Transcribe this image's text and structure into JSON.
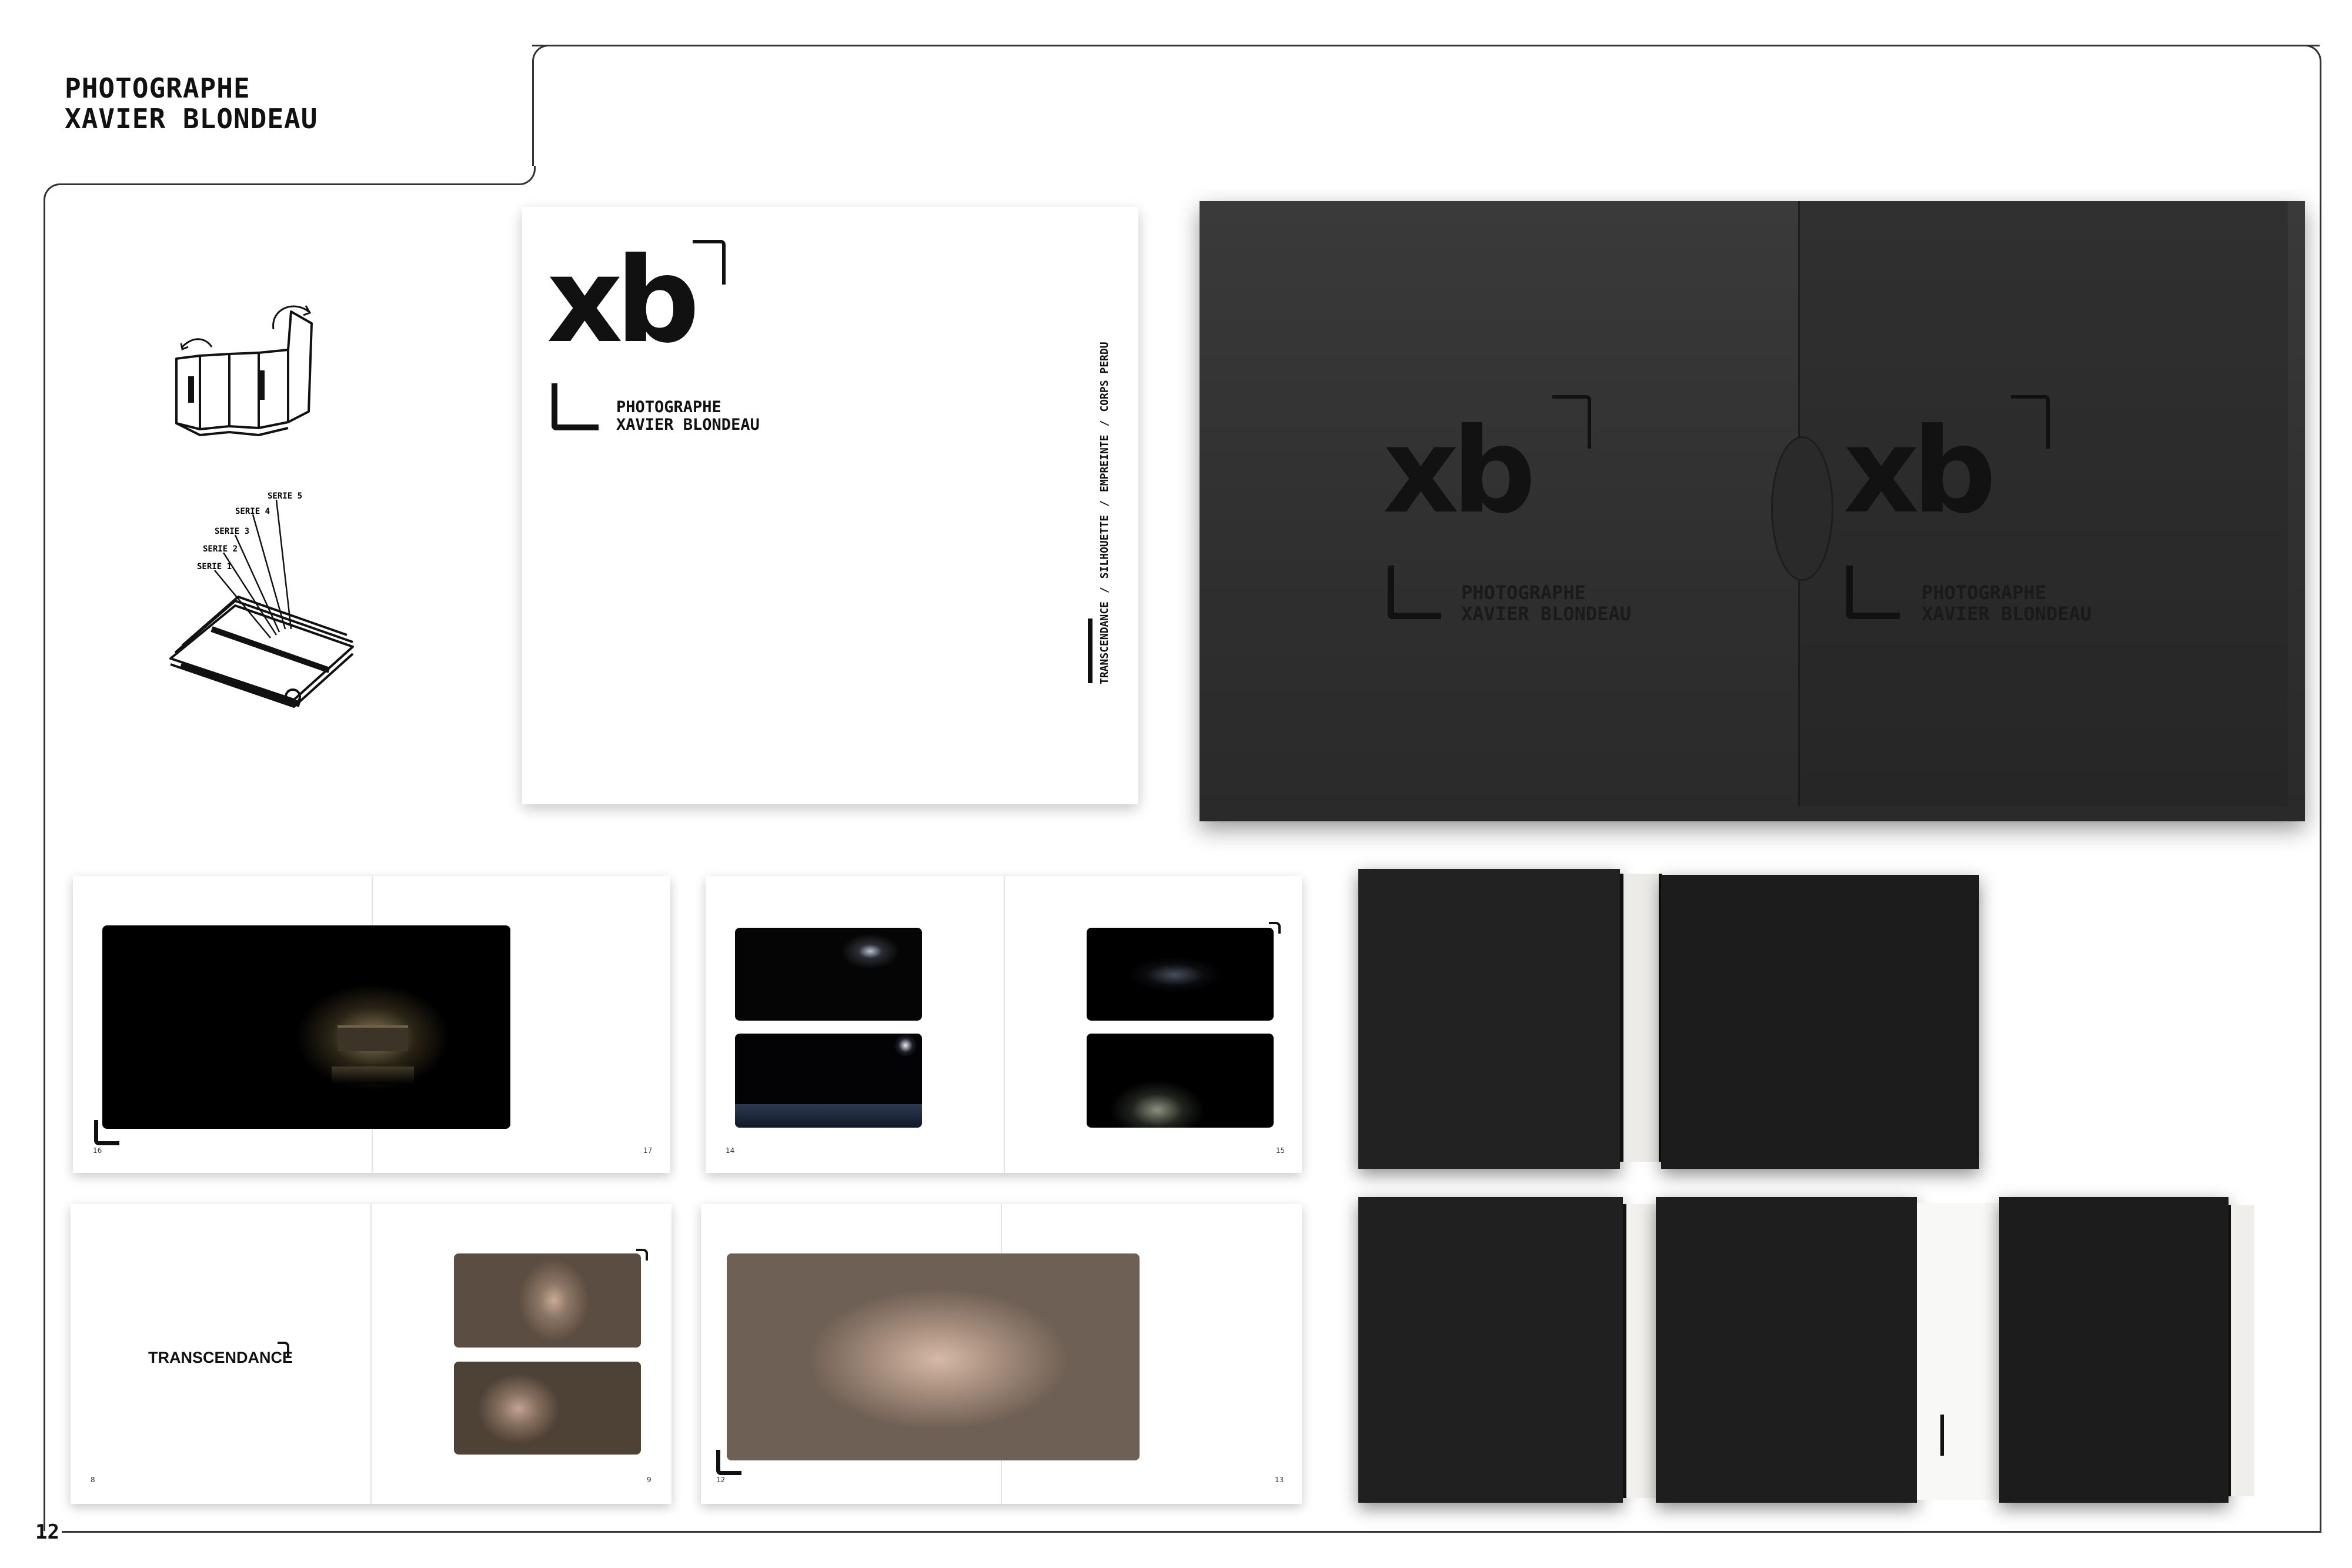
{
  "header": {
    "title_line1": "PHOTOGRAPHE",
    "title_line2": "XAVIER BLONDEAU"
  },
  "page_number": "12",
  "sketches": {
    "series_labels": [
      "SERIE 5",
      "SERIE 4",
      "SERIE 3",
      "SERIE 2",
      "SERIE 1"
    ]
  },
  "cover": {
    "logo": "xb",
    "line1": "PHOTOGRAPHE",
    "line2": "XAVIER BLONDEAU",
    "series": [
      "TRANSCENDANCE",
      "SILHOUETTE",
      "EMPREINTE",
      "CORPS PERDU"
    ]
  },
  "box": {
    "logo": "xb",
    "line1": "PHOTOGRAPHE",
    "line2": "XAVIER BLONDEAU"
  },
  "spreads": {
    "s1": {
      "left": "16",
      "right": "17"
    },
    "s2": {
      "left": "14",
      "right": "15"
    },
    "s3": {
      "left": "8",
      "right": "9",
      "title": "TRANSCENDANCE"
    },
    "s4": {
      "left": "12",
      "right": "13"
    }
  },
  "colors": {
    "box": "#2f2f2f",
    "ink": "#111111",
    "frame": "#333333"
  }
}
